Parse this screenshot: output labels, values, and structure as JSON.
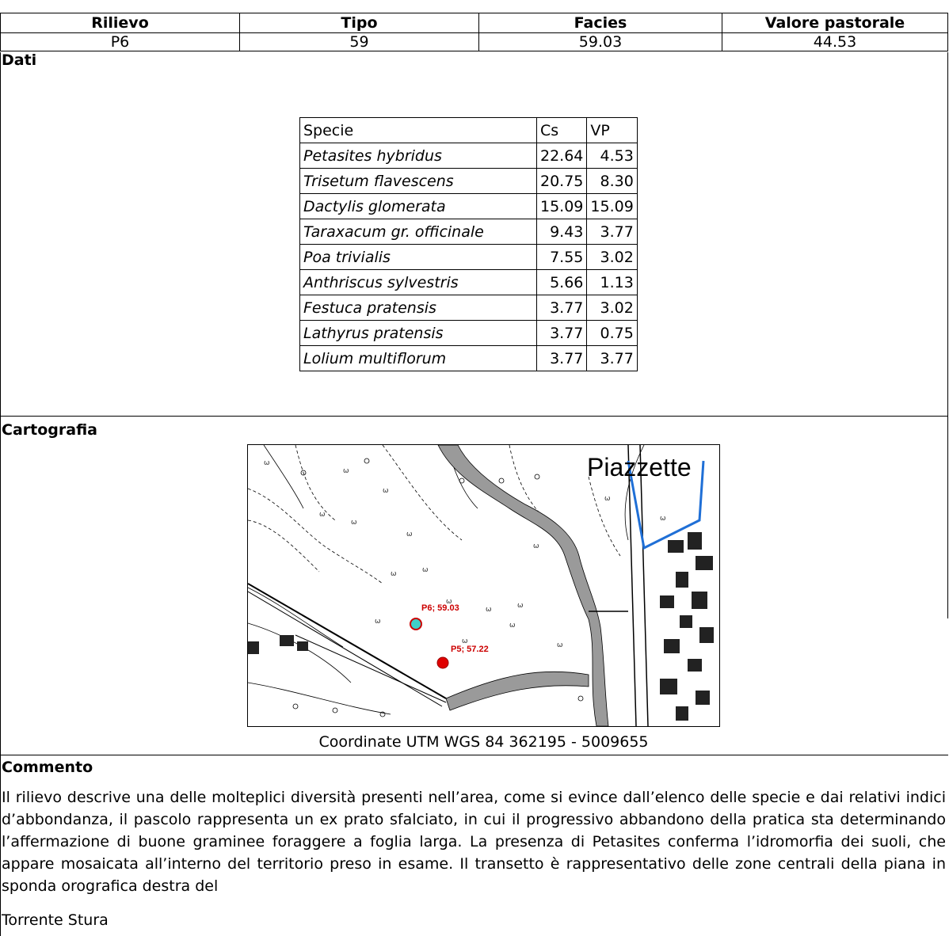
{
  "header": {
    "columns": [
      "Rilievo",
      "Tipo",
      "Facies",
      "Valore pastorale"
    ],
    "values": [
      "P6",
      "59",
      "59.03",
      "44.53"
    ]
  },
  "sections": {
    "dati": "Dati",
    "cartografia": "Cartografia",
    "commento": "Commento"
  },
  "species_table": {
    "headers": [
      "Specie",
      "Cs",
      "VP"
    ],
    "rows": [
      [
        "Petasites hybridus",
        "22.64",
        "4.53"
      ],
      [
        "Trisetum flavescens",
        "20.75",
        "8.30"
      ],
      [
        "Dactylis glomerata",
        "15.09",
        "15.09"
      ],
      [
        "Taraxacum gr. officinale",
        "9.43",
        "3.77"
      ],
      [
        "Poa trivialis",
        "7.55",
        "3.02"
      ],
      [
        "Anthriscus sylvestris",
        "5.66",
        "1.13"
      ],
      [
        "Festuca pratensis",
        "3.77",
        "3.02"
      ],
      [
        "Lathyrus pratensis",
        "3.77",
        "0.75"
      ],
      [
        "Lolium multiflorum",
        "3.77",
        "3.77"
      ]
    ]
  },
  "map": {
    "place_label": "Piazzette",
    "point_p6": "P6; 59.03",
    "point_p5": "P5; 57.22",
    "colors": {
      "p6": "#3fd0c8",
      "p5": "#e00000",
      "label": "#cc0000",
      "river": "#9a9a9a",
      "boundary": "#1f6fd6"
    }
  },
  "coordinates": "Coordinate UTM WGS 84 362195 - 5009655",
  "comment": {
    "text": "Il rilievo descrive una delle molteplici diversità presenti nell’area, come si evince dall’elenco delle specie e dai relativi indici d’abbondanza, il pascolo rappresenta un ex prato sfalciato, in cui il progressivo abbandono della pratica sta determinando l’affermazione di buone graminee foraggere a foglia larga. La presenza di Petasites conferma l’idromorfia dei suoli, che appare mosaicata all’interno del territorio preso in esame. Il transetto è rappresentativo delle zone centrali della piana in sponda orografica destra del",
    "last_line": "Torrente Stura"
  }
}
